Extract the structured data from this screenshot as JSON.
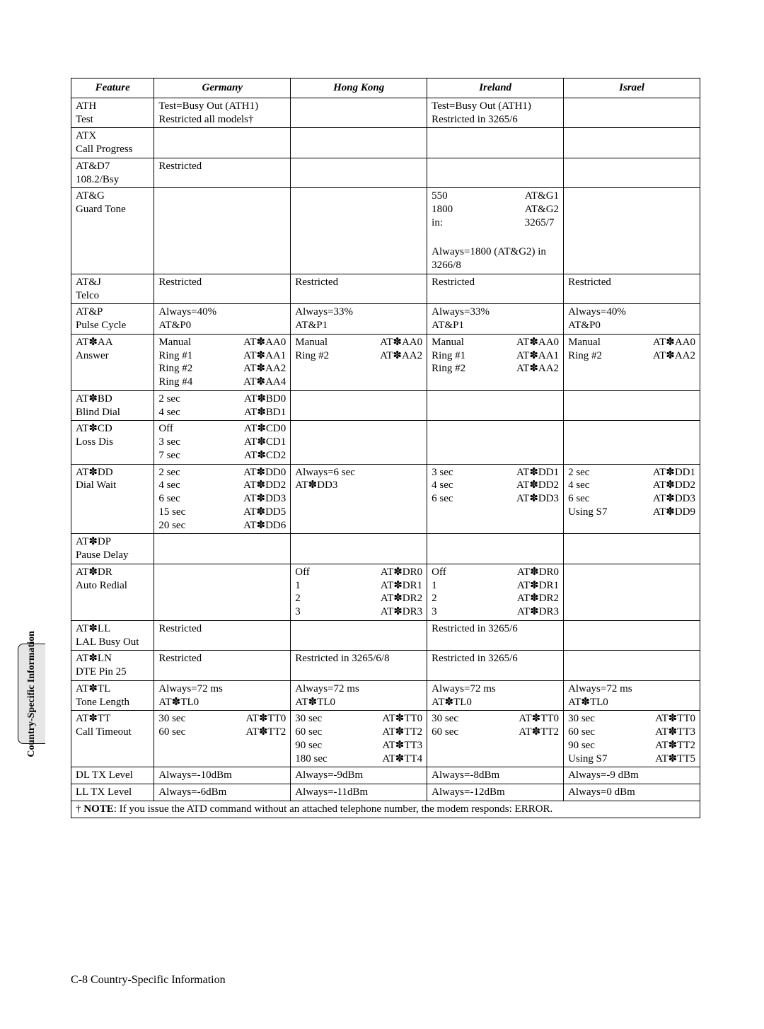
{
  "side_tab": "Country-Specific\nInformation",
  "headers": {
    "feature": "Feature",
    "countries": [
      "Germany",
      "Hong Kong",
      "Ireland",
      "Israel"
    ]
  },
  "rows": [
    {
      "feature": "ATH\nTest",
      "c": [
        {
          "text": "Test=Busy Out (ATH1)\nRestricted all models†"
        },
        {
          "text": ""
        },
        {
          "text": "Test=Busy Out (ATH1)\nRestricted in 3265/6"
        },
        {
          "text": ""
        }
      ]
    },
    {
      "feature": "ATX\nCall Progress",
      "c": [
        {
          "text": ""
        },
        {
          "text": ""
        },
        {
          "text": ""
        },
        {
          "text": ""
        }
      ]
    },
    {
      "feature": "AT&D7\n108.2/Bsy",
      "c": [
        {
          "text": "Restricted"
        },
        {
          "text": ""
        },
        {
          "text": ""
        },
        {
          "text": ""
        }
      ]
    },
    {
      "feature": "AT&G\nGuard Tone",
      "c": [
        {
          "text": ""
        },
        {
          "text": ""
        },
        {
          "pair": {
            "l": "550\n1800\nin:\n\n",
            "r": "AT&G1\nAT&G2\n3265/7\n\n"
          },
          "after": "Always=1800 (AT&G2) in 3266/8"
        },
        {
          "text": ""
        }
      ]
    },
    {
      "feature": "AT&J\nTelco",
      "c": [
        {
          "text": "Restricted"
        },
        {
          "text": "Restricted"
        },
        {
          "text": "Restricted"
        },
        {
          "text": "Restricted"
        }
      ]
    },
    {
      "feature": "AT&P\nPulse Cycle",
      "c": [
        {
          "text": "Always=40%\nAT&P0"
        },
        {
          "text": "Always=33%\nAT&P1"
        },
        {
          "text": "Always=33%\nAT&P1"
        },
        {
          "text": "Always=40%\nAT&P0"
        }
      ]
    },
    {
      "feature": "AT✽AA\nAnswer",
      "c": [
        {
          "pair": {
            "l": "Manual\nRing #1\nRing #2\nRing #4",
            "r": "AT✽AA0\nAT✽AA1\nAT✽AA2\nAT✽AA4"
          }
        },
        {
          "pair": {
            "l": "Manual\nRing #2",
            "r": "AT✽AA0\nAT✽AA2"
          }
        },
        {
          "pair": {
            "l": "Manual\nRing #1\nRing #2",
            "r": "AT✽AA0\nAT✽AA1\nAT✽AA2"
          }
        },
        {
          "pair": {
            "l": "Manual\nRing #2",
            "r": "AT✽AA0\nAT✽AA2"
          }
        }
      ]
    },
    {
      "feature": "AT✽BD\nBlind Dial",
      "c": [
        {
          "pair": {
            "l": "2 sec\n4 sec",
            "r": "AT✽BD0\nAT✽BD1"
          }
        },
        {
          "text": ""
        },
        {
          "text": ""
        },
        {
          "text": ""
        }
      ]
    },
    {
      "feature": "AT✽CD\nLoss Dis",
      "c": [
        {
          "pair": {
            "l": "Off\n3 sec\n7 sec",
            "r": "AT✽CD0\nAT✽CD1\nAT✽CD2"
          }
        },
        {
          "text": ""
        },
        {
          "text": ""
        },
        {
          "text": ""
        }
      ]
    },
    {
      "feature": "AT✽DD\nDial Wait",
      "c": [
        {
          "pair": {
            "l": "2 sec\n4 sec\n6 sec\n15 sec\n20 sec",
            "r": "AT✽DD0\nAT✽DD2\nAT✽DD3\nAT✽DD5\nAT✽DD6"
          }
        },
        {
          "text": "Always=6 sec\nAT✽DD3"
        },
        {
          "pair": {
            "l": "3 sec\n4 sec\n6 sec",
            "r": "AT✽DD1\nAT✽DD2\nAT✽DD3"
          }
        },
        {
          "pair": {
            "l": "2 sec\n4 sec\n6 sec\nUsing S7",
            "r": "AT✽DD1\nAT✽DD2\nAT✽DD3\nAT✽DD9"
          }
        }
      ]
    },
    {
      "feature": "AT✽DP\nPause Delay",
      "c": [
        {
          "text": ""
        },
        {
          "text": ""
        },
        {
          "text": ""
        },
        {
          "text": ""
        }
      ]
    },
    {
      "feature": "AT✽DR\nAuto Redial",
      "c": [
        {
          "text": ""
        },
        {
          "pair": {
            "l": "Off\n1\n2\n3",
            "r": "AT✽DR0\nAT✽DR1\nAT✽DR2\nAT✽DR3"
          }
        },
        {
          "pair": {
            "l": "Off\n1\n2\n3",
            "r": "AT✽DR0\nAT✽DR1\nAT✽DR2\nAT✽DR3"
          }
        },
        {
          "text": ""
        }
      ]
    },
    {
      "feature": "AT✽LL\nLAL Busy Out",
      "c": [
        {
          "text": "Restricted"
        },
        {
          "text": ""
        },
        {
          "text": "Restricted in 3265/6"
        },
        {
          "text": ""
        }
      ]
    },
    {
      "feature": "AT✽LN\nDTE Pin 25",
      "c": [
        {
          "text": "Restricted"
        },
        {
          "text": "Restricted in 3265/6/8"
        },
        {
          "text": "Restricted in 3265/6"
        },
        {
          "text": ""
        }
      ]
    },
    {
      "feature": "AT✽TL\nTone Length",
      "c": [
        {
          "text": "Always=72 ms\nAT✽TL0"
        },
        {
          "text": "Always=72 ms\nAT✽TL0"
        },
        {
          "text": "Always=72 ms\nAT✽TL0"
        },
        {
          "text": "Always=72 ms\nAT✽TL0"
        }
      ]
    },
    {
      "feature": "AT✽TT\nCall Timeout",
      "c": [
        {
          "pair": {
            "l": "30 sec\n60 sec",
            "r": "AT✽TT0\nAT✽TT2"
          }
        },
        {
          "pair": {
            "l": "30 sec\n60 sec\n90 sec\n180 sec",
            "r": "AT✽TT0\nAT✽TT2\nAT✽TT3\nAT✽TT4"
          }
        },
        {
          "pair": {
            "l": "30 sec\n60 sec",
            "r": "AT✽TT0\nAT✽TT2"
          }
        },
        {
          "pair": {
            "l": "30 sec\n60 sec\n90 sec\nUsing S7",
            "r": "AT✽TT0\nAT✽TT3\nAT✽TT2\nAT✽TT5"
          }
        }
      ]
    },
    {
      "feature": "DL TX Level",
      "c": [
        {
          "text": "Always=-10dBm"
        },
        {
          "text": "Always=-9dBm"
        },
        {
          "text": "Always=-8dBm"
        },
        {
          "text": "Always=-9 dBm"
        }
      ]
    },
    {
      "feature": "LL TX Level",
      "c": [
        {
          "text": "Always=-6dBm"
        },
        {
          "text": "Always=-11dBm"
        },
        {
          "text": "Always=-12dBm"
        },
        {
          "text": "Always=0 dBm"
        }
      ]
    }
  ],
  "footnote": {
    "dagger": "† ",
    "label": "NOTE",
    "text": ": If you issue the ATD command without an attached telephone number, the modem responds: ERROR."
  },
  "footer": "C-8  Country-Specific Information"
}
